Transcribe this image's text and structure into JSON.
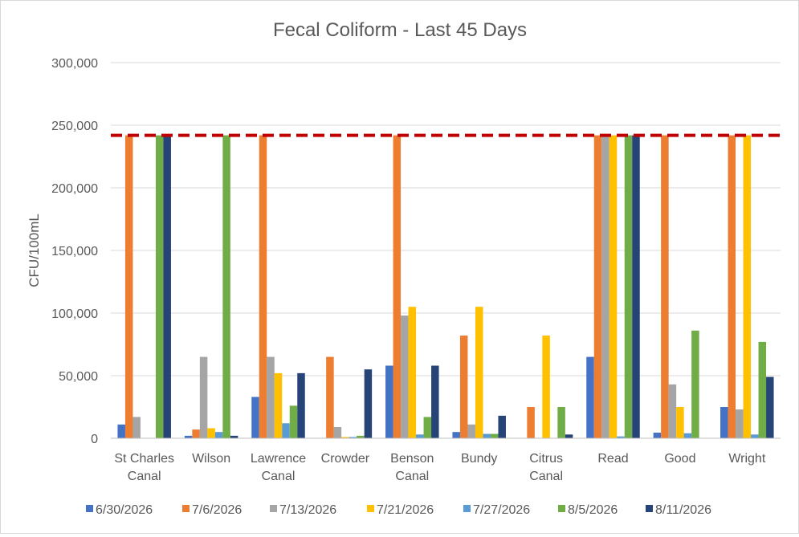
{
  "chart_data": {
    "type": "bar",
    "title": "Fecal Coliform - Last 45 Days",
    "xlabel": "",
    "ylabel": "CFU/100mL",
    "ylim": [
      0,
      300000
    ],
    "yticks": [
      0,
      50000,
      100000,
      150000,
      200000,
      250000,
      300000
    ],
    "ytick_labels": [
      "0",
      "50,000",
      "100,000",
      "150,000",
      "200,000",
      "250,000",
      "300,000"
    ],
    "grid": true,
    "legend_position": "bottom",
    "categories": [
      [
        "St Charles",
        "Canal"
      ],
      [
        "Wilson"
      ],
      [
        "Lawrence",
        "Canal"
      ],
      [
        "Crowder"
      ],
      [
        "Benson",
        "Canal"
      ],
      [
        "Bundy"
      ],
      [
        "Citrus",
        "Canal"
      ],
      [
        "Read"
      ],
      [
        "Good"
      ],
      [
        "Wright"
      ]
    ],
    "series": [
      {
        "name": "6/30/2026",
        "color": "#4472C4",
        "values": [
          11000,
          2000,
          33000,
          0,
          58000,
          5000,
          0,
          65000,
          4500,
          25000
        ]
      },
      {
        "name": "7/6/2026",
        "color": "#ED7D31",
        "values": [
          241920,
          7000,
          241920,
          65000,
          241920,
          82000,
          25000,
          241920,
          241920,
          241920
        ]
      },
      {
        "name": "7/13/2026",
        "color": "#A5A5A5",
        "values": [
          17000,
          65000,
          65000,
          9000,
          98000,
          11000,
          0,
          241920,
          43000,
          23000
        ]
      },
      {
        "name": "7/21/2026",
        "color": "#FFC000",
        "values": [
          0,
          8000,
          52000,
          1000,
          105000,
          105000,
          82000,
          241920,
          25000,
          241920
        ]
      },
      {
        "name": "7/27/2026",
        "color": "#5B9BD5",
        "values": [
          0,
          5000,
          12000,
          1000,
          3000,
          3500,
          0,
          1500,
          4000,
          3000
        ]
      },
      {
        "name": "8/5/2026",
        "color": "#70AD47",
        "values": [
          241920,
          241920,
          26000,
          2000,
          17000,
          3500,
          25000,
          241920,
          86000,
          77000
        ]
      },
      {
        "name": "8/11/2026",
        "color": "#264478",
        "values": [
          241920,
          2000,
          52000,
          55000,
          58000,
          18000,
          3000,
          241920,
          0,
          49000
        ]
      }
    ],
    "reference_line": {
      "value": 241920,
      "color": "#C00000",
      "style": "dashed"
    }
  }
}
